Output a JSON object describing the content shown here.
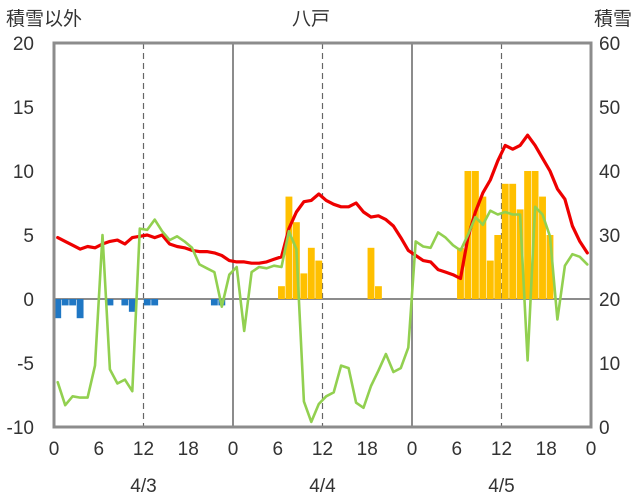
{
  "chart_data": {
    "type": "bar+line",
    "title": "八戸",
    "left_axis_label": "積雪以外",
    "right_axis_label": "積雪",
    "left_ylim": [
      -10,
      20
    ],
    "left_ticks": [
      "20",
      "15",
      "10",
      "5",
      "0",
      "-5",
      "-10"
    ],
    "right_ylim": [
      0,
      60
    ],
    "right_ticks": [
      "60",
      "50",
      "40",
      "30",
      "20",
      "10",
      "0"
    ],
    "x_hours_total": 72,
    "x_tick_labels": [
      "0",
      "6",
      "12",
      "18",
      "0",
      "6",
      "12",
      "18",
      "0",
      "6",
      "12",
      "18",
      "0"
    ],
    "date_labels": [
      "4/3",
      "4/4",
      "4/5"
    ],
    "grid": "dashed vertical at 12h, solid vertical at day boundaries",
    "series": [
      {
        "kind": "bar",
        "axis": "left",
        "color": "#1f77c4",
        "x": [
          0,
          1,
          2,
          3,
          7,
          9,
          10,
          12,
          13,
          21,
          22
        ],
        "values": [
          -1.5,
          -0.5,
          -0.5,
          -1.5,
          -0.5,
          -0.5,
          -1,
          -0.5,
          -0.5,
          -0.5,
          -0.5
        ]
      },
      {
        "kind": "bar",
        "axis": "left",
        "color": "#ffc000",
        "x": [
          30,
          31,
          32,
          33,
          34,
          35,
          42,
          43,
          54,
          55,
          56,
          57,
          58,
          59,
          60,
          61,
          62,
          63,
          64,
          65,
          66
        ],
        "values": [
          1,
          8,
          6,
          2,
          4,
          3,
          4,
          1,
          4,
          10,
          10,
          8,
          3,
          5,
          9,
          9,
          7,
          10,
          10,
          8,
          5
        ]
      },
      {
        "kind": "line",
        "axis": "left",
        "color": "#ee0000",
        "x": [
          0,
          1,
          2,
          3,
          4,
          5,
          6,
          7,
          8,
          9,
          10,
          11,
          12,
          13,
          14,
          15,
          16,
          17,
          18,
          19,
          20,
          21,
          22,
          23,
          24,
          25,
          26,
          27,
          28,
          29,
          30,
          31,
          32,
          33,
          34,
          35,
          36,
          37,
          38,
          39,
          40,
          41,
          42,
          43,
          44,
          45,
          46,
          47,
          48,
          49,
          50,
          51,
          52,
          53,
          54,
          55,
          56,
          57,
          58,
          59,
          60,
          61,
          62,
          63,
          64,
          65,
          66,
          67,
          68,
          69,
          70,
          71
        ],
        "values": [
          4.8,
          4.5,
          4.2,
          3.9,
          4.1,
          4.0,
          4.3,
          4.5,
          4.6,
          4.3,
          4.8,
          4.9,
          5.0,
          4.8,
          5.0,
          4.3,
          4.1,
          4.0,
          3.8,
          3.7,
          3.7,
          3.6,
          3.4,
          3.0,
          2.9,
          2.9,
          2.8,
          2.8,
          2.9,
          3.1,
          3.3,
          5.5,
          6.8,
          7.6,
          7.7,
          8.2,
          7.7,
          7.4,
          7.2,
          7.2,
          7.5,
          6.8,
          6.4,
          6.5,
          6.2,
          5.7,
          4.8,
          3.8,
          3.4,
          3.0,
          2.9,
          2.3,
          2.1,
          1.9,
          1.6,
          4.8,
          6.8,
          8.3,
          9.3,
          10.8,
          12.0,
          11.7,
          12.0,
          12.8,
          12.0,
          11.0,
          10.0,
          8.6,
          7.8,
          5.7,
          4.5,
          3.6
        ]
      },
      {
        "kind": "line",
        "axis": "left",
        "color": "#92d050",
        "x": [
          0,
          1,
          2,
          3,
          4,
          5,
          6,
          7,
          8,
          9,
          10,
          11,
          12,
          13,
          14,
          15,
          16,
          17,
          18,
          19,
          20,
          21,
          22,
          23,
          24,
          25,
          26,
          27,
          28,
          29,
          30,
          31,
          32,
          33,
          34,
          35,
          36,
          37,
          38,
          39,
          40,
          41,
          42,
          43,
          44,
          45,
          46,
          47,
          48,
          49,
          50,
          51,
          52,
          53,
          54,
          55,
          56,
          57,
          58,
          59,
          60,
          61,
          62,
          63,
          64,
          65,
          66,
          67,
          68,
          69,
          70,
          71
        ],
        "values": [
          -6.5,
          -8.3,
          -7.6,
          -7.7,
          -7.7,
          -5.2,
          5.0,
          -5.5,
          -6.6,
          -6.3,
          -7.2,
          5.5,
          5.4,
          6.2,
          5.3,
          4.6,
          4.9,
          4.5,
          4.0,
          2.7,
          2.4,
          2.1,
          -0.6,
          1.9,
          2.5,
          -2.5,
          2.1,
          2.5,
          2.4,
          2.6,
          2.5,
          5.3,
          3.9,
          -8.0,
          -9.6,
          -8.2,
          -7.6,
          -7.3,
          -5.2,
          -5.4,
          -8.1,
          -8.5,
          -6.8,
          -5.6,
          -4.3,
          -5.7,
          -5.4,
          -3.8,
          4.5,
          4.1,
          4.0,
          5.2,
          4.8,
          4.2,
          3.8,
          5.0,
          6.4,
          5.8,
          6.9,
          6.6,
          6.8,
          6.6,
          6.6,
          -4.8,
          7.2,
          6.6,
          4.9,
          -1.6,
          2.6,
          3.5,
          3.3,
          2.7
        ]
      },
      {
        "kind": "line",
        "axis": "right",
        "color": "#7030a0",
        "x": [
          0,
          72
        ],
        "values": [
          0,
          0
        ]
      }
    ]
  }
}
